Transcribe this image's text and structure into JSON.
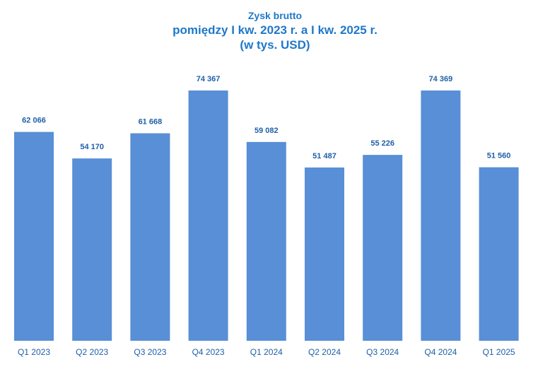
{
  "chart_data": {
    "type": "bar",
    "title_lines": [
      "Zysk brutto",
      "pomiędzy I kw. 2023 r. a I kw. 2025 r.",
      "(w tys. USD)"
    ],
    "categories": [
      "Q1 2023",
      "Q2 2023",
      "Q3 2023",
      "Q4 2023",
      "Q1 2024",
      "Q2 2024",
      "Q3 2024",
      "Q4 2024",
      "Q1 2025"
    ],
    "values": [
      62066,
      54170,
      61668,
      74367,
      59082,
      51487,
      55226,
      74369,
      51560
    ],
    "data_labels": [
      "62 066",
      "54 170",
      "61 668",
      "74 367",
      "59 082",
      "51 487",
      "55 226",
      "74 369",
      "51 560"
    ],
    "xlabel": "",
    "ylabel": "",
    "ylim": [
      0,
      80000
    ],
    "grid": false,
    "legend": "none",
    "colors": {
      "bar": "#588fd6",
      "title": "#1f78c8",
      "labels": "#1f5fa8"
    }
  }
}
